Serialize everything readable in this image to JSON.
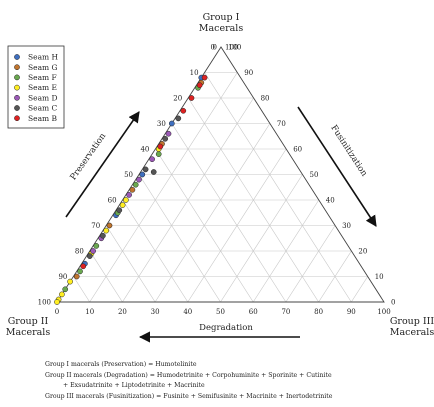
{
  "chart_data": {
    "type": "ternary-scatter",
    "apex_top": [
      "Group I",
      "Macerals"
    ],
    "apex_left": [
      "Group II",
      "Macerals"
    ],
    "apex_right": [
      "Group III",
      "Macerals"
    ],
    "ticks": [
      "0",
      "10",
      "20",
      "30",
      "40",
      "50",
      "60",
      "70",
      "80",
      "90",
      "100"
    ],
    "arrows": {
      "left": "Preservation",
      "right": "Fusinitization",
      "bottom": "Degradation"
    },
    "grid": true,
    "legend_position": "top-left",
    "series": [
      {
        "name": "Seam H",
        "color": "#3f6fbf",
        "points": [
          [
            88,
            12,
            0
          ],
          [
            70,
            30,
            0
          ],
          [
            50,
            49,
            1
          ],
          [
            34,
            65,
            1
          ],
          [
            15,
            84,
            1
          ]
        ]
      },
      {
        "name": "Seam G",
        "color": "#c0752e",
        "points": [
          [
            86,
            13,
            1
          ],
          [
            62,
            37,
            1
          ],
          [
            44,
            55,
            1
          ],
          [
            30,
            69,
            1
          ],
          [
            10,
            89,
            1
          ]
        ]
      },
      {
        "name": "Seam F",
        "color": "#6aa84f",
        "points": [
          [
            84,
            15,
            1
          ],
          [
            58,
            40,
            2
          ],
          [
            46,
            53,
            1
          ],
          [
            35,
            64,
            1
          ],
          [
            22,
            77,
            1
          ],
          [
            12,
            87,
            1
          ],
          [
            5,
            95,
            0
          ]
        ]
      },
      {
        "name": "Seam E",
        "color": "#ffee22",
        "points": [
          [
            60,
            39,
            1
          ],
          [
            40,
            59,
            1
          ],
          [
            38,
            61,
            1
          ],
          [
            28,
            71,
            1
          ],
          [
            19,
            80,
            1
          ],
          [
            8,
            92,
            0
          ],
          [
            3,
            97,
            0
          ],
          [
            1,
            99,
            0
          ],
          [
            0,
            100,
            0
          ]
        ]
      },
      {
        "name": "Seam D",
        "color": "#9b59b6",
        "points": [
          [
            66,
            33,
            1
          ],
          [
            56,
            43,
            1
          ],
          [
            48,
            51,
            1
          ],
          [
            42,
            57,
            1
          ],
          [
            25,
            74,
            1
          ],
          [
            20,
            79,
            1
          ]
        ]
      },
      {
        "name": "Seam C",
        "color": "#555555",
        "points": [
          [
            72,
            27,
            1
          ],
          [
            64,
            35,
            1
          ],
          [
            52,
            47,
            1
          ],
          [
            51,
            45,
            4
          ],
          [
            36,
            63,
            1
          ],
          [
            26,
            73,
            1
          ],
          [
            18,
            81,
            1
          ]
        ]
      },
      {
        "name": "Seam B",
        "color": "#dd2222",
        "points": [
          [
            88,
            11,
            1
          ],
          [
            85,
            14,
            1
          ],
          [
            80,
            19,
            1
          ],
          [
            75,
            24,
            1
          ],
          [
            61,
            38,
            1
          ],
          [
            14,
            85,
            1
          ]
        ]
      }
    ]
  },
  "footnotes": [
    "Group I macerals (Preservation) = Humotelinite",
    "Group II macerals (Degradation) = Humodetrinite + Corpohuminite + Sporinite + Cutinite",
    "+ Exsudatrinite + Liptodetrinite + Macrinite",
    "Group III macerals (Fusinitization) = Fusinite + Semifusinite + Macrinite + Inertodetrinite"
  ]
}
